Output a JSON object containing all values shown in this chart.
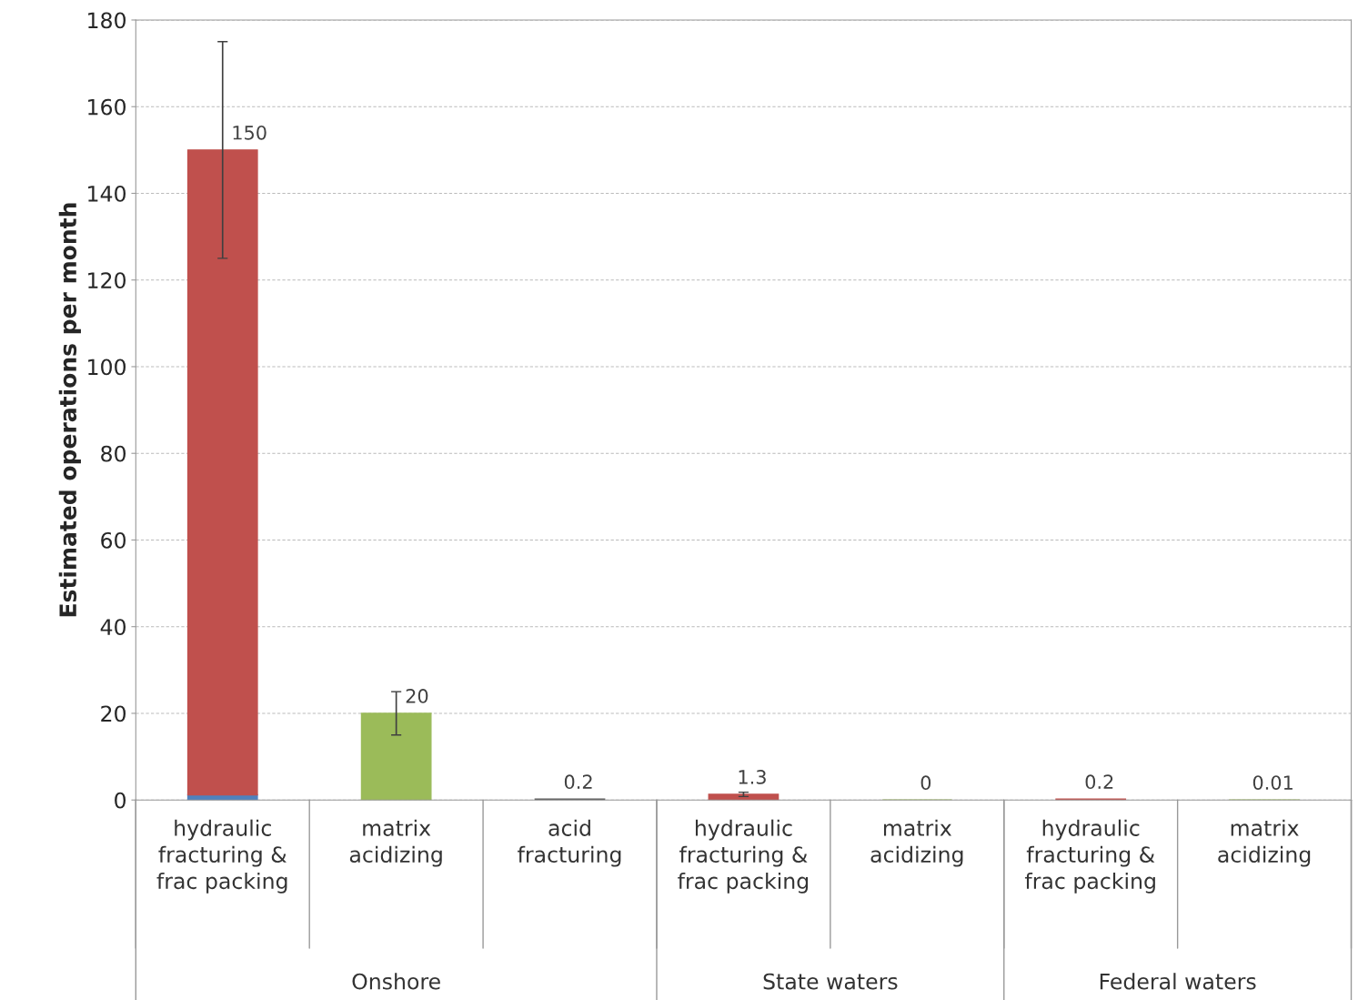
{
  "chart_data": {
    "type": "bar",
    "ylabel": "Estimated operations per month",
    "categories": [
      "hydraulic fracturing & frac packing",
      "matrix acidizing",
      "acid fracturing",
      "hydraulic fracturing & frac packing",
      "matrix acidizing",
      "hydraulic fracturing & frac packing",
      "matrix acidizing"
    ],
    "stacked": true,
    "series": [
      {
        "color": "#4f81bd",
        "values": [
          1.2,
          null,
          null,
          null,
          null,
          null,
          null
        ]
      },
      {
        "colors": [
          "#c0504d",
          "#9bbb59",
          "#595959",
          "#c0504d",
          "#9bbb59",
          "#c0504d",
          "#9bbb59"
        ],
        "values": [
          148.8,
          20,
          0.2,
          1.3,
          0,
          0.2,
          0.01
        ],
        "errors": [
          [
            125,
            175
          ],
          [
            15,
            25
          ],
          null,
          [
            0.8,
            1.8
          ],
          null,
          null,
          null
        ]
      }
    ],
    "totals": [
      "150",
      "20",
      "0.2",
      "1.3",
      "0",
      "0.2",
      "0.01"
    ],
    "annotations": [
      "Onshore",
      "State waters",
      "Federal waters"
    ],
    "ylim": [
      0,
      180
    ],
    "yticks": [
      0,
      20,
      40,
      60,
      80,
      100,
      120,
      140,
      160,
      180
    ],
    "grid": "y"
  }
}
